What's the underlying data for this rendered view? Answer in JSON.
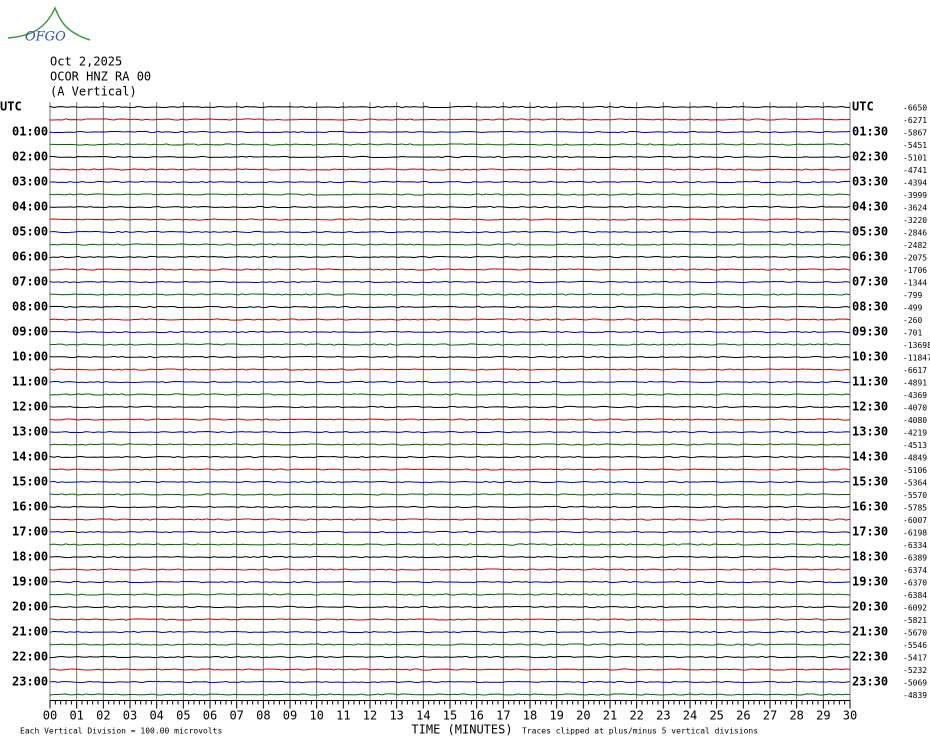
{
  "header": {
    "logo": "OFGO",
    "date": "Oct 2,2025",
    "station": "OCOR HNZ RA 00",
    "component": "(A Vertical)"
  },
  "left_labels": [
    "UTC",
    "01:00",
    "02:00",
    "03:00",
    "04:00",
    "05:00",
    "06:00",
    "07:00",
    "08:00",
    "09:00",
    "10:00",
    "11:00",
    "12:00",
    "13:00",
    "14:00",
    "15:00",
    "16:00",
    "17:00",
    "18:00",
    "19:00",
    "20:00",
    "21:00",
    "22:00",
    "23:00"
  ],
  "right_labels": [
    "UTC",
    "01:30",
    "02:30",
    "03:30",
    "04:30",
    "05:30",
    "06:30",
    "07:30",
    "08:30",
    "09:30",
    "10:30",
    "11:30",
    "12:30",
    "13:30",
    "14:30",
    "15:30",
    "16:30",
    "17:30",
    "18:30",
    "19:30",
    "20:30",
    "21:30",
    "22:30",
    "23:30"
  ],
  "trace_values": [
    -6650,
    -6271,
    -5867,
    -5451,
    -5101,
    -4741,
    -4394,
    -3999,
    -3624,
    -3220,
    -2846,
    -2482,
    -2075,
    -1706,
    -1344,
    -799,
    -499,
    -260,
    -701,
    -13698,
    -11847,
    -6617,
    -4891,
    -4369,
    -4070,
    -4080,
    -4219,
    -4513,
    -4849,
    -5106,
    -5364,
    -5570,
    -5785,
    -6007,
    -6198,
    -6334,
    -6389,
    -6374,
    -6370,
    -6384,
    -6092,
    -5821,
    -5670,
    -5546,
    -5417,
    -5232,
    -5069,
    -4839
  ],
  "x_ticks": [
    "00",
    "01",
    "02",
    "03",
    "04",
    "05",
    "06",
    "07",
    "08",
    "09",
    "10",
    "11",
    "12",
    "13",
    "14",
    "15",
    "16",
    "17",
    "18",
    "19",
    "20",
    "21",
    "22",
    "23",
    "24",
    "25",
    "26",
    "27",
    "28",
    "29",
    "30"
  ],
  "x_axis_label": "TIME (MINUTES)",
  "footer_left": "Each Vertical Division =  100.00 microvolts",
  "footer_right": "Traces clipped at plus/minus 5 vertical divisions"
}
